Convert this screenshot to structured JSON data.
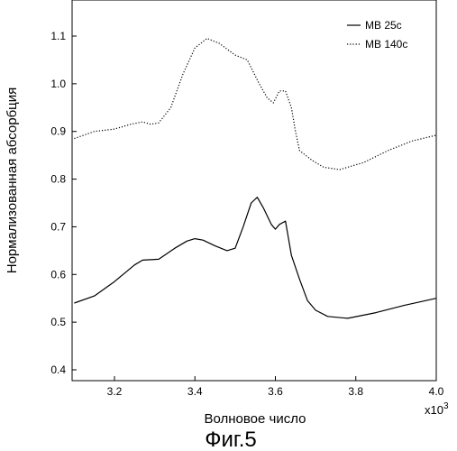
{
  "figure_caption": "Фиг.5",
  "chart_data": {
    "type": "line",
    "title": "",
    "xlabel": "Волновое число",
    "ylabel": "Нормализованная абсорбция",
    "x_multiplier_base": "x10",
    "x_multiplier_exp": "3",
    "xlim": [
      3.1,
      4.0
    ],
    "ylim": [
      0.4,
      1.15
    ],
    "x_ticks": [
      3.2,
      3.4,
      3.6,
      3.8,
      4.0
    ],
    "x_tick_labels": [
      "3.2",
      "3.4",
      "3.6",
      "3.8",
      "4.0"
    ],
    "y_ticks": [
      0.4,
      0.5,
      0.6,
      0.7,
      0.8,
      0.9,
      1.0,
      1.1
    ],
    "y_tick_labels": [
      "0.4",
      "0.5",
      "0.6",
      "0.7",
      "0.8",
      "0.9",
      "1.0",
      "1.1"
    ],
    "grid": false,
    "legend_position": "top-right",
    "series": [
      {
        "name": "MB 25c",
        "style": "solid",
        "color": "#000000",
        "x": [
          3.1,
          3.15,
          3.2,
          3.25,
          3.27,
          3.31,
          3.35,
          3.38,
          3.4,
          3.42,
          3.45,
          3.48,
          3.5,
          3.52,
          3.54,
          3.555,
          3.57,
          3.59,
          3.6,
          3.61,
          3.625,
          3.64,
          3.66,
          3.68,
          3.7,
          3.73,
          3.78,
          3.85,
          3.92,
          4.0
        ],
        "y": [
          0.54,
          0.555,
          0.585,
          0.62,
          0.63,
          0.632,
          0.655,
          0.67,
          0.675,
          0.672,
          0.66,
          0.65,
          0.655,
          0.7,
          0.75,
          0.762,
          0.74,
          0.705,
          0.695,
          0.705,
          0.712,
          0.64,
          0.59,
          0.545,
          0.525,
          0.512,
          0.508,
          0.52,
          0.535,
          0.55
        ]
      },
      {
        "name": "MB 140c",
        "style": "dotted",
        "color": "#000000",
        "x": [
          3.1,
          3.15,
          3.2,
          3.24,
          3.27,
          3.29,
          3.31,
          3.34,
          3.37,
          3.4,
          3.43,
          3.46,
          3.5,
          3.53,
          3.56,
          3.58,
          3.595,
          3.61,
          3.625,
          3.64,
          3.65,
          3.66,
          3.69,
          3.72,
          3.76,
          3.82,
          3.88,
          3.94,
          4.0
        ],
        "y": [
          0.885,
          0.9,
          0.905,
          0.915,
          0.92,
          0.915,
          0.918,
          0.95,
          1.02,
          1.075,
          1.095,
          1.085,
          1.06,
          1.05,
          1.0,
          0.97,
          0.96,
          0.985,
          0.985,
          0.95,
          0.9,
          0.86,
          0.84,
          0.825,
          0.82,
          0.835,
          0.86,
          0.88,
          0.892
        ]
      }
    ]
  }
}
